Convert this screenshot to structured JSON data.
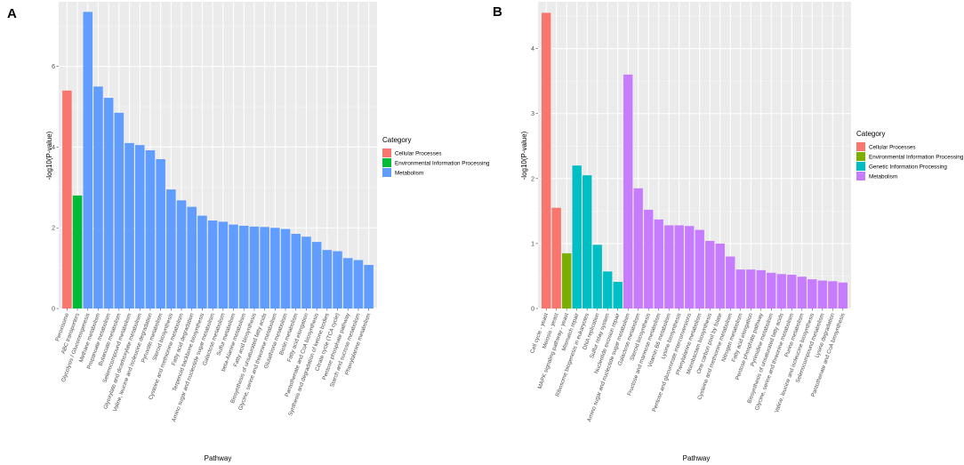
{
  "chart_data": [
    {
      "panel_label": "A",
      "type": "bar",
      "xlabel": "Pathway",
      "ylabel": "-log10(P-value)",
      "ylim": [
        0,
        7.6
      ],
      "yticks": [
        0,
        2,
        4,
        6
      ],
      "grid": true,
      "legend": {
        "title": "Category",
        "position": "right",
        "entries": [
          {
            "label": "Cellular Processes",
            "color": "#F8766D"
          },
          {
            "label": "Environmental Information Processing",
            "color": "#00BA38"
          },
          {
            "label": "Metabolism",
            "color": "#619CFF"
          }
        ]
      },
      "bars": [
        {
          "category": "Peroxisome",
          "value": 5.4,
          "group": 0
        },
        {
          "category": "ABC transporters",
          "value": 2.8,
          "group": 1
        },
        {
          "category": "Glycolysis / Gluconeogenesis",
          "value": 7.35,
          "group": 2
        },
        {
          "category": "Methane metabolism",
          "value": 5.5,
          "group": 2
        },
        {
          "category": "Propanoate metabolism",
          "value": 5.22,
          "group": 2
        },
        {
          "category": "Butanoate metabolism",
          "value": 4.85,
          "group": 2
        },
        {
          "category": "Selenocompound metabolism",
          "value": 4.1,
          "group": 2
        },
        {
          "category": "Glyoxylate and dicarboxylate metabolism",
          "value": 4.05,
          "group": 2
        },
        {
          "category": "Valine, leucine and isoleucine degradation",
          "value": 3.92,
          "group": 2
        },
        {
          "category": "Pyruvate metabolism",
          "value": 3.7,
          "group": 2
        },
        {
          "category": "Steroid biosynthesis",
          "value": 2.95,
          "group": 2
        },
        {
          "category": "Cysteine and methionine metabolism",
          "value": 2.68,
          "group": 2
        },
        {
          "category": "Fatty acid degradation",
          "value": 2.52,
          "group": 2
        },
        {
          "category": "Terpenoid backbone biosynthesis",
          "value": 2.3,
          "group": 2
        },
        {
          "category": "Amino sugar and nucleotide sugar metabolism",
          "value": 2.18,
          "group": 2
        },
        {
          "category": "Galactose metabolism",
          "value": 2.15,
          "group": 2
        },
        {
          "category": "Sulfur metabolism",
          "value": 2.08,
          "group": 2
        },
        {
          "category": "beta-Alanine metabolism",
          "value": 2.05,
          "group": 2
        },
        {
          "category": "Fatty acid biosynthesis",
          "value": 2.03,
          "group": 2
        },
        {
          "category": "Biosynthesis of unsaturated fatty acids",
          "value": 2.02,
          "group": 2
        },
        {
          "category": "Glycine, serine and threonine metabolism",
          "value": 2.0,
          "group": 2
        },
        {
          "category": "Glutathione metabolism",
          "value": 1.97,
          "group": 2
        },
        {
          "category": "Biotin metabolism",
          "value": 1.85,
          "group": 2
        },
        {
          "category": "Fatty acid elongation",
          "value": 1.78,
          "group": 2
        },
        {
          "category": "Pantothenate and CoA biosynthesis",
          "value": 1.65,
          "group": 2
        },
        {
          "category": "Synthesis and degradation of ketone bodies",
          "value": 1.45,
          "group": 2
        },
        {
          "category": "Citrate cycle (TCA cycle)",
          "value": 1.42,
          "group": 2
        },
        {
          "category": "Pentose phosphate pathway",
          "value": 1.25,
          "group": 2
        },
        {
          "category": "Starch and sucrose metabolism",
          "value": 1.2,
          "group": 2
        },
        {
          "category": "Phenylalanine metabolism",
          "value": 1.08,
          "group": 2
        }
      ]
    },
    {
      "panel_label": "B",
      "type": "bar",
      "xlabel": "Pathway",
      "ylabel": "-log10(P-value)",
      "ylim": [
        0,
        4.72
      ],
      "yticks": [
        0,
        1,
        2,
        3,
        4
      ],
      "grid": true,
      "legend": {
        "title": "Category",
        "position": "right",
        "entries": [
          {
            "label": "Cellular Processes",
            "color": "#F8766D"
          },
          {
            "label": "Environmental Information Processing",
            "color": "#7CAE00"
          },
          {
            "label": "Genetic Information Processing",
            "color": "#00BFC4"
          },
          {
            "label": "Metabolism",
            "color": "#C77CFF"
          }
        ]
      },
      "bars": [
        {
          "category": "Cell cycle - yeast",
          "value": 4.55,
          "group": 0
        },
        {
          "category": "Meiosis - yeast",
          "value": 1.55,
          "group": 0
        },
        {
          "category": "MAPK signaling pathway - yeast",
          "value": 0.85,
          "group": 1
        },
        {
          "category": "Mismatch repair",
          "value": 2.2,
          "group": 2
        },
        {
          "category": "Ribosome biogenesis in eukaryotes",
          "value": 2.05,
          "group": 2
        },
        {
          "category": "DNA replication",
          "value": 0.98,
          "group": 2
        },
        {
          "category": "Sulfur relay system",
          "value": 0.57,
          "group": 2
        },
        {
          "category": "Nucleotide excision repair",
          "value": 0.41,
          "group": 2
        },
        {
          "category": "Amino sugar and nucleotide sugar metabolism",
          "value": 3.6,
          "group": 3
        },
        {
          "category": "Galactose metabolism",
          "value": 1.85,
          "group": 3
        },
        {
          "category": "Steroid biosynthesis",
          "value": 1.52,
          "group": 3
        },
        {
          "category": "Fructose and mannose metabolism",
          "value": 1.37,
          "group": 3
        },
        {
          "category": "Vitamin B6 metabolism",
          "value": 1.28,
          "group": 3
        },
        {
          "category": "Lysine biosynthesis",
          "value": 1.28,
          "group": 3
        },
        {
          "category": "Pentose and glucuronate interconversions",
          "value": 1.27,
          "group": 3
        },
        {
          "category": "Phenylalanine metabolism",
          "value": 1.21,
          "group": 3
        },
        {
          "category": "Monobactam biosynthesis",
          "value": 1.04,
          "group": 3
        },
        {
          "category": "One carbon pool by folate",
          "value": 1.0,
          "group": 3
        },
        {
          "category": "Cysteine and methionine metabolism",
          "value": 0.8,
          "group": 3
        },
        {
          "category": "Nitrogen metabolism",
          "value": 0.6,
          "group": 3
        },
        {
          "category": "Fatty acid elongation",
          "value": 0.6,
          "group": 3
        },
        {
          "category": "Pentose phosphate pathway",
          "value": 0.59,
          "group": 3
        },
        {
          "category": "Pyrimidine metabolism",
          "value": 0.55,
          "group": 3
        },
        {
          "category": "Biosynthesis of unsaturated fatty acids",
          "value": 0.53,
          "group": 3
        },
        {
          "category": "Glycine, serine and threonine metabolism",
          "value": 0.52,
          "group": 3
        },
        {
          "category": "Purine metabolism",
          "value": 0.49,
          "group": 3
        },
        {
          "category": "Valine, leucine and isoleucine biosynthesis",
          "value": 0.45,
          "group": 3
        },
        {
          "category": "Selenocompound metabolism",
          "value": 0.43,
          "group": 3
        },
        {
          "category": "Lysine degradation",
          "value": 0.42,
          "group": 3
        },
        {
          "category": "Pantothenate and CoA biosynthesis",
          "value": 0.4,
          "group": 3
        }
      ]
    }
  ]
}
